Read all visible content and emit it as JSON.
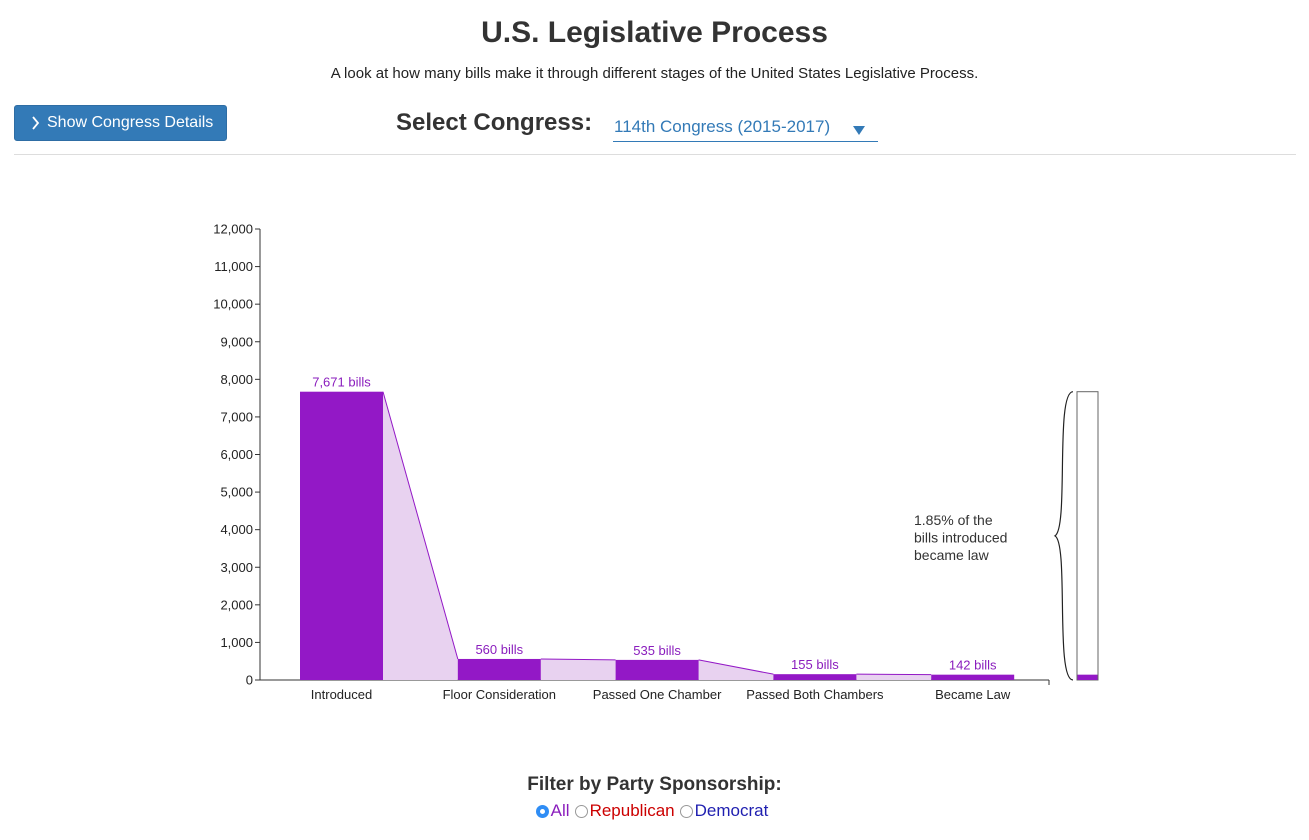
{
  "page": {
    "title": "U.S. Legislative Process",
    "subtitle": "A look at how many bills make it through different stages of the United States Legislative Process."
  },
  "toolbar": {
    "details_button_label": "Show Congress Details",
    "details_button_icon": "chevron-right-icon",
    "select_label": "Select Congress:",
    "select_value": "114th Congress (2015-2017)",
    "select_icon": "triangle-down-icon"
  },
  "colors": {
    "accent": "#337ab7",
    "bar": "#9318c6",
    "bar_light": "#e8d2f0",
    "label": "#8a1dbd",
    "republican": "#cc0000",
    "democrat": "#1f1fb0",
    "radio_checked": "#2f8df5"
  },
  "chart_data": {
    "type": "bar",
    "categories": [
      "Introduced",
      "Floor Consideration",
      "Passed One Chamber",
      "Passed Both Chambers",
      "Became Law"
    ],
    "values": [
      7671,
      560,
      535,
      155,
      142
    ],
    "data_labels": [
      "7,671 bills",
      "560 bills",
      "535 bills",
      "155 bills",
      "142 bills"
    ],
    "ylim": [
      0,
      12000
    ],
    "yticks": [
      0,
      1000,
      2000,
      3000,
      4000,
      5000,
      6000,
      7000,
      8000,
      9000,
      10000,
      11000,
      12000
    ],
    "ytick_labels": [
      "0",
      "1,000",
      "2,000",
      "3,000",
      "4,000",
      "5,000",
      "6,000",
      "7,000",
      "8,000",
      "9,000",
      "10,000",
      "11,000",
      "12,000"
    ],
    "xlabel": "",
    "ylabel": "",
    "grid": false,
    "annotation": {
      "lines": [
        "1.85% of the",
        "bills introduced",
        "became law"
      ],
      "percent": 1.85
    }
  },
  "filter": {
    "title": "Filter by Party Sponsorship:",
    "options": [
      {
        "label": "All",
        "checked": true,
        "color": "#8a1dbd"
      },
      {
        "label": "Republican",
        "checked": false,
        "color": "#cc0000"
      },
      {
        "label": "Democrat",
        "checked": false,
        "color": "#1f1fb0"
      }
    ]
  }
}
